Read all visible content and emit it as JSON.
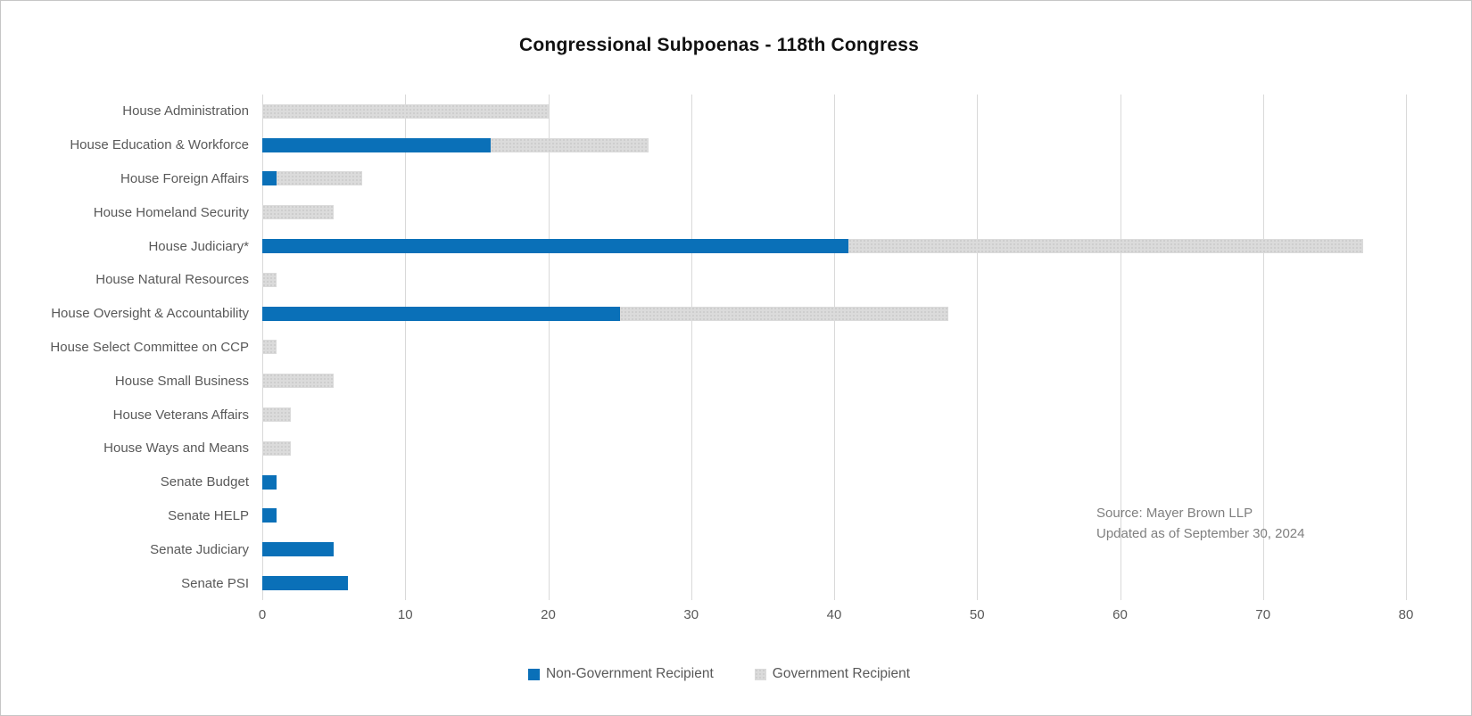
{
  "title": "Congressional Subpoenas - 118th Congress",
  "source_note": {
    "line1": "Source: Mayer Brown LLP",
    "line2": "Updated as of September 30, 2024"
  },
  "colors": {
    "non_government": "#0a70b8",
    "government": "#d9d9d9",
    "gridline": "#d9d9d9",
    "axis_text": "#595959",
    "note_text": "#7f7f7f"
  },
  "chart_data": {
    "type": "bar",
    "orientation": "horizontal",
    "stacked": true,
    "title": "Congressional Subpoenas - 118th Congress",
    "categories": [
      "House Administration",
      "House Education & Workforce",
      "House Foreign Affairs",
      "House Homeland Security",
      "House Judiciary*",
      "House Natural Resources",
      "House Oversight & Accountability",
      "House Select Committee on CCP",
      "House Small Business",
      "House Veterans Affairs",
      "House Ways and Means",
      "Senate Budget",
      "Senate HELP",
      "Senate Judiciary",
      "Senate PSI"
    ],
    "series": [
      {
        "name": "Non-Government Recipient",
        "color": "#0a70b8",
        "values": [
          0,
          16,
          1,
          0,
          41,
          0,
          25,
          0,
          0,
          0,
          0,
          1,
          1,
          5,
          6
        ]
      },
      {
        "name": "Government Recipient",
        "color": "#d9d9d9",
        "values": [
          20,
          11,
          6,
          5,
          36,
          1,
          23,
          1,
          5,
          2,
          2,
          0,
          0,
          0,
          0
        ]
      }
    ],
    "xlabel": "",
    "ylabel": "",
    "xlim": [
      0,
      80
    ],
    "xticks": [
      0,
      10,
      20,
      30,
      40,
      50,
      60,
      70,
      80
    ],
    "grid": "vertical",
    "legend_position": "bottom",
    "annotation": [
      "Source: Mayer Brown LLP",
      "Updated as of September 30, 2024"
    ]
  },
  "legend": [
    {
      "label": "Non-Government Recipient",
      "style": "nongov"
    },
    {
      "label": "Government Recipient",
      "style": "gov"
    }
  ]
}
